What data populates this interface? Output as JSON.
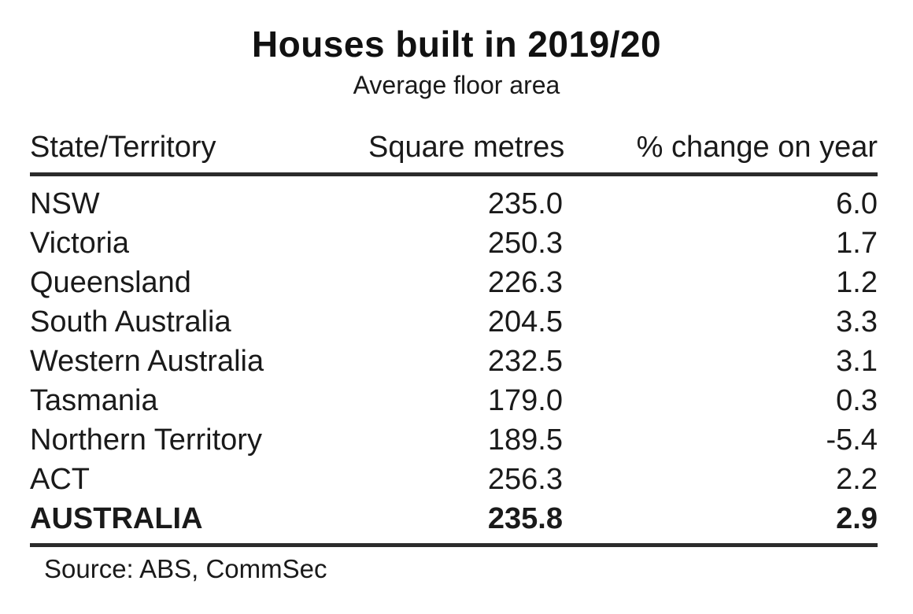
{
  "title": "Houses built in 2019/20",
  "subtitle": "Average floor area",
  "source": "Source: ABS, CommSec",
  "text_color": "#1a1a1a",
  "rule_color": "#2b2b2b",
  "chart_data": {
    "type": "table",
    "columns": [
      "State/Territory",
      "Square metres",
      "% change on year"
    ],
    "rows": [
      {
        "state": "NSW",
        "square_metres": "235.0",
        "pct_change": "6.0",
        "bold": false
      },
      {
        "state": "Victoria",
        "square_metres": "250.3",
        "pct_change": "1.7",
        "bold": false
      },
      {
        "state": "Queensland",
        "square_metres": "226.3",
        "pct_change": "1.2",
        "bold": false
      },
      {
        "state": "South Australia",
        "square_metres": "204.5",
        "pct_change": "3.3",
        "bold": false
      },
      {
        "state": "Western Australia",
        "square_metres": "232.5",
        "pct_change": "3.1",
        "bold": false
      },
      {
        "state": "Tasmania",
        "square_metres": "179.0",
        "pct_change": "0.3",
        "bold": false
      },
      {
        "state": "Northern Territory",
        "square_metres": "189.5",
        "pct_change": "-5.4",
        "bold": false
      },
      {
        "state": "ACT",
        "square_metres": "256.3",
        "pct_change": "2.2",
        "bold": false
      },
      {
        "state": "AUSTRALIA",
        "square_metres": "235.8",
        "pct_change": "2.9",
        "bold": true
      }
    ]
  }
}
